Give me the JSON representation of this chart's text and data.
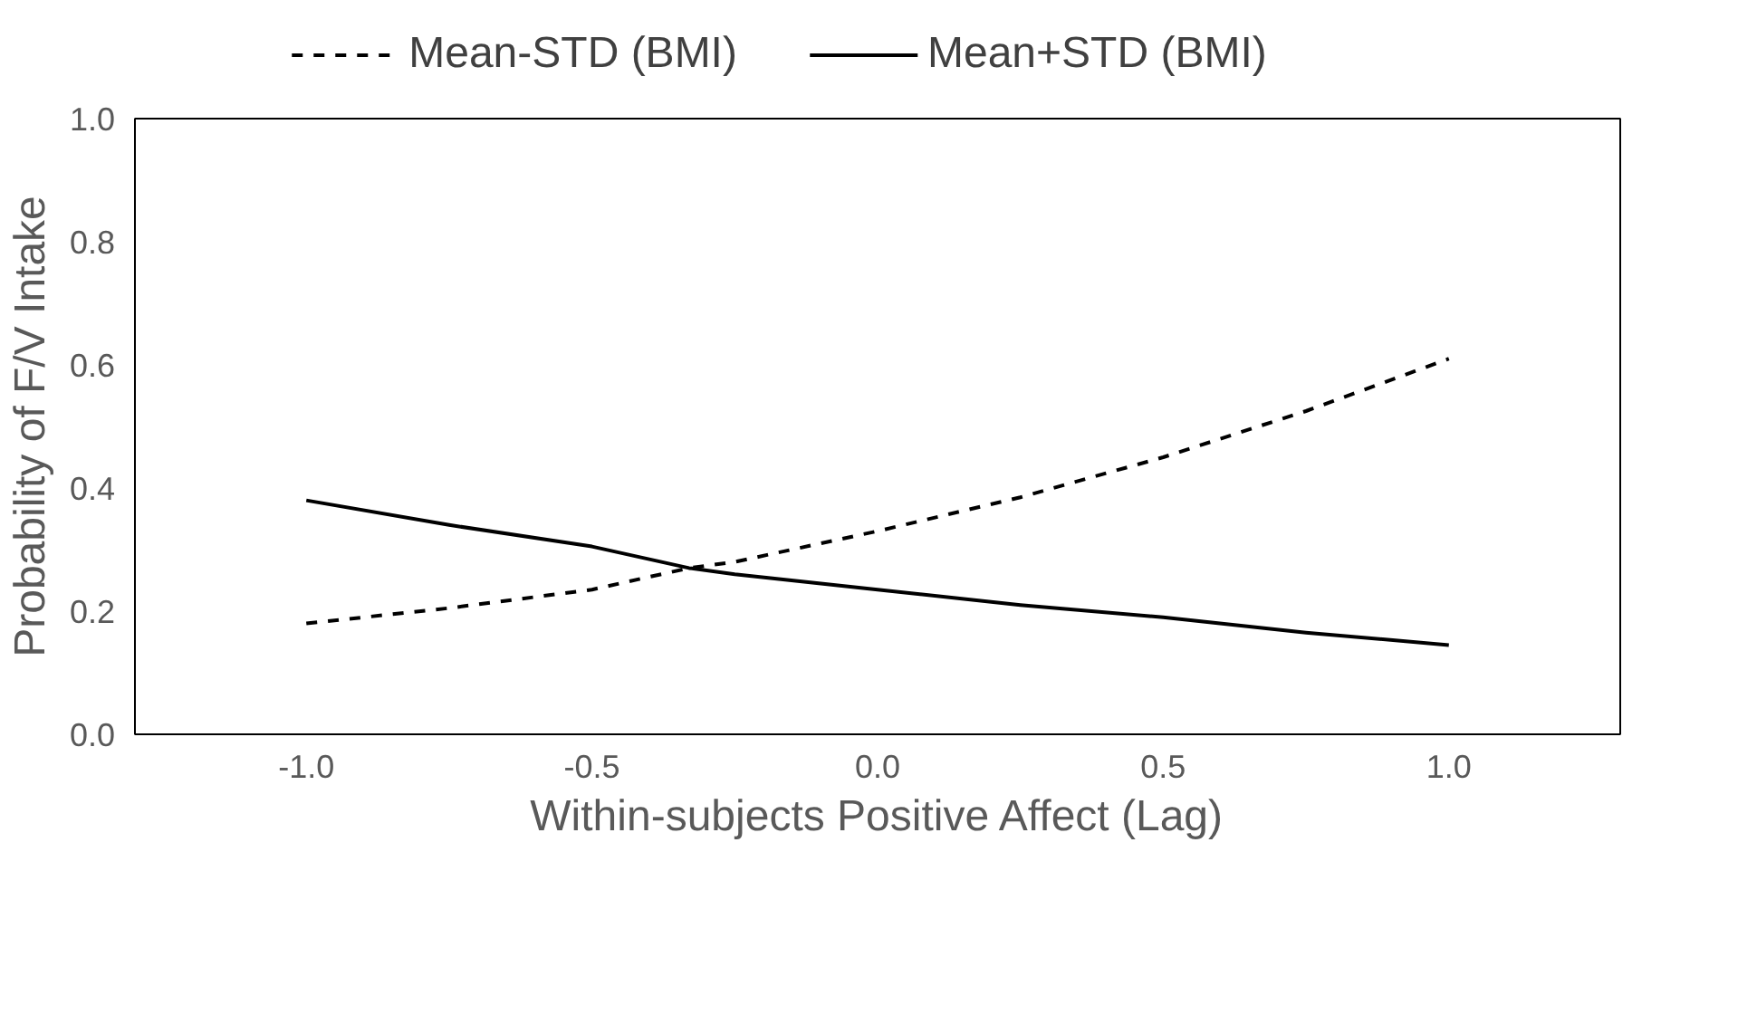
{
  "chart_data": {
    "type": "line",
    "xlabel": "Within-subjects Positive Affect (Lag)",
    "ylabel": "Probability of F/V Intake",
    "xlim": [
      -1.3,
      1.3
    ],
    "ylim": [
      0,
      1
    ],
    "xticks": [
      {
        "value": -1,
        "label": "-1.0"
      },
      {
        "value": -0.5,
        "label": "-0.5"
      },
      {
        "value": 0,
        "label": "0.0"
      },
      {
        "value": 0.5,
        "label": "0.5"
      },
      {
        "value": 1,
        "label": "1.0"
      }
    ],
    "yticks": [
      {
        "value": 0,
        "label": "0.0"
      },
      {
        "value": 0.2,
        "label": "0.2"
      },
      {
        "value": 0.4,
        "label": "0.4"
      },
      {
        "value": 0.6,
        "label": "0.6"
      },
      {
        "value": 0.8,
        "label": "0.8"
      },
      {
        "value": 1,
        "label": "1.0"
      }
    ],
    "x": [
      -1,
      -0.75,
      -0.5,
      -0.33,
      -0.25,
      0,
      0.25,
      0.5,
      0.75,
      1
    ],
    "grid": false,
    "legend": "top",
    "marker": "none",
    "series": [
      {
        "name": "Mean-STD (BMI)",
        "color": "#000000",
        "line_style": "dashed",
        "values": [
          0.18,
          0.205,
          0.235,
          0.27,
          0.28,
          0.33,
          0.385,
          0.45,
          0.525,
          0.61
        ]
      },
      {
        "name": "Mean+STD (BMI)",
        "color": "#000000",
        "line_style": "solid",
        "values": [
          0.38,
          0.34,
          0.305,
          0.27,
          0.26,
          0.235,
          0.21,
          0.19,
          0.165,
          0.145
        ]
      }
    ]
  }
}
